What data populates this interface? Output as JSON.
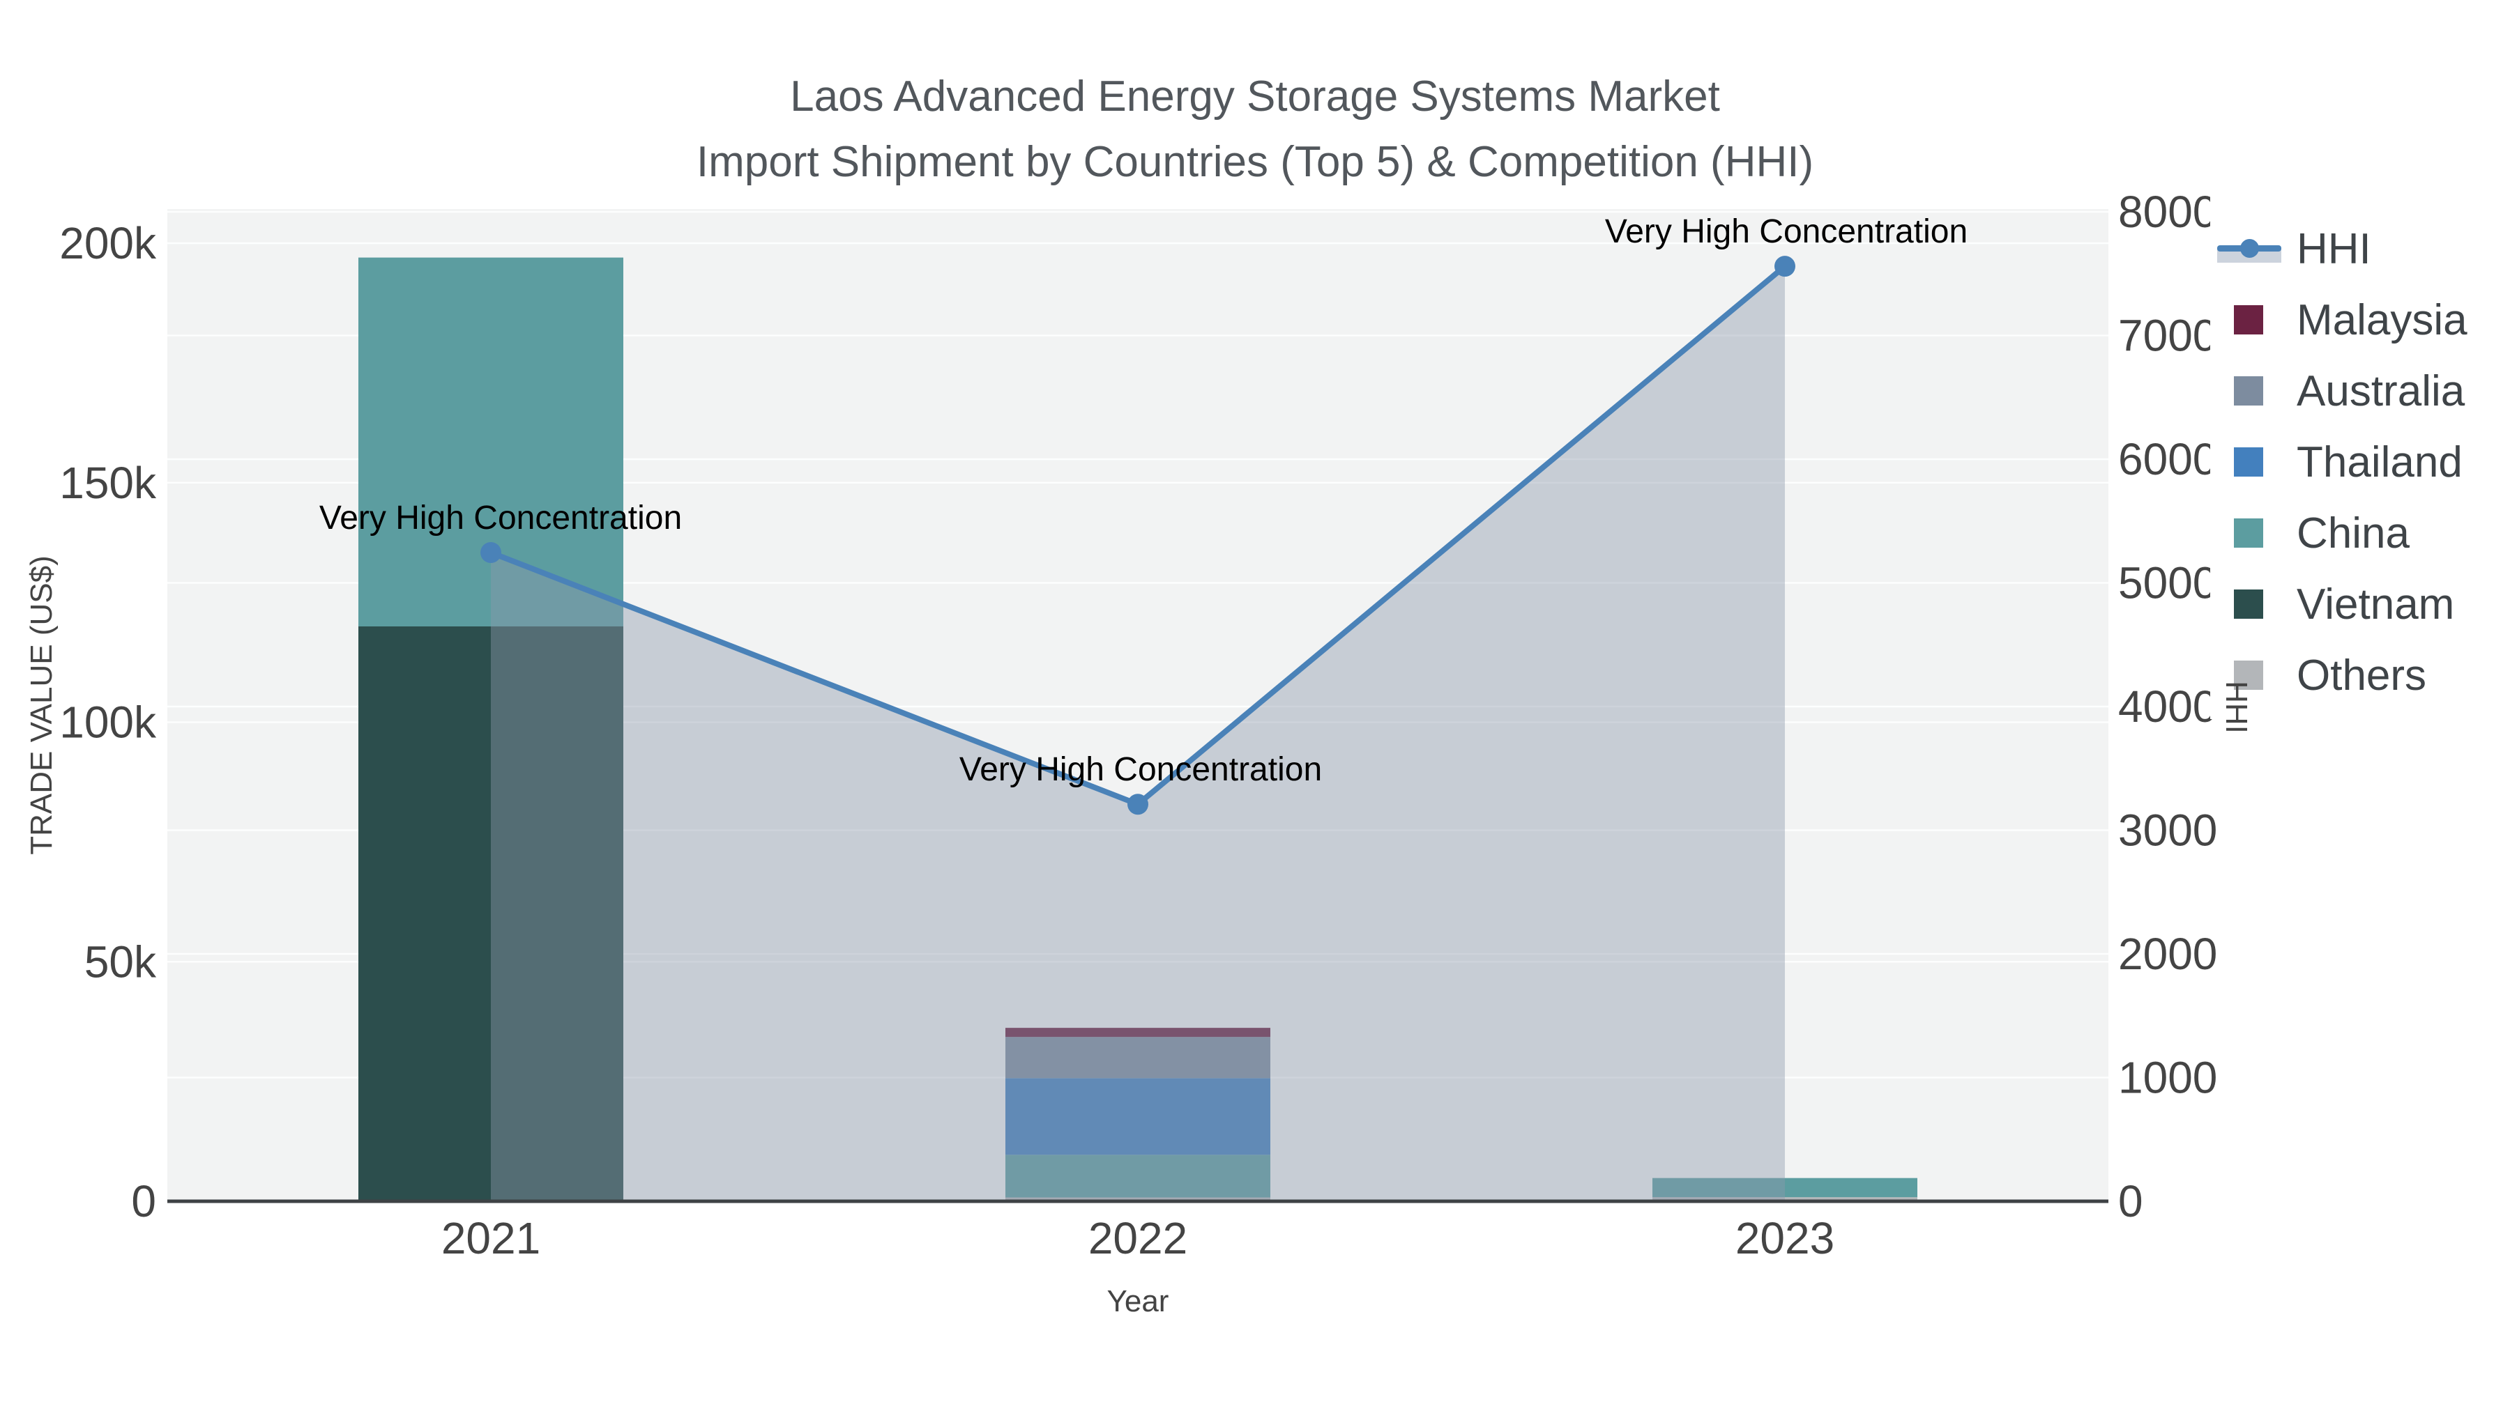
{
  "title_line1": "Laos Advanced Energy Storage Systems Market",
  "title_line2": "Import Shipment by Countries (Top 5) & Competition (HHI)",
  "chart_data": {
    "type": "combo: stacked bar (trade value) + line (HHI) on secondary axis",
    "categories": [
      "2021",
      "2022",
      "2023"
    ],
    "series": [
      {
        "name": "Malaysia",
        "type": "bar",
        "color": "#6b2242",
        "values": [
          0,
          1900,
          0
        ]
      },
      {
        "name": "Australia",
        "type": "bar",
        "color": "#7d8c9f",
        "values": [
          0,
          8600,
          0
        ]
      },
      {
        "name": "Thailand",
        "type": "bar",
        "color": "#4380be",
        "values": [
          0,
          16000,
          0
        ]
      },
      {
        "name": "China",
        "type": "bar",
        "color": "#5c9da0",
        "values": [
          77000,
          8900,
          4000
        ]
      },
      {
        "name": "Vietnam",
        "type": "bar",
        "color": "#2c4e4d",
        "values": [
          120000,
          0,
          0
        ]
      },
      {
        "name": "Others",
        "type": "bar",
        "color": "#b3b6b9",
        "values": [
          0,
          800,
          850
        ]
      }
    ],
    "stack_order_bottom_to_top": [
      "Others",
      "Vietnam",
      "China",
      "Thailand",
      "Australia",
      "Malaysia"
    ],
    "line_series": {
      "name": "HHI",
      "color": "#4a82b8",
      "area_fill_color": "rgba(140,152,172,0.42)",
      "values": [
        5245,
        3210,
        7560
      ]
    },
    "annotations": [
      {
        "text": "Very High Concentration",
        "category": "2021",
        "dx": 14
      },
      {
        "text": "Very High Concentration",
        "category": "2022",
        "dx": 4
      },
      {
        "text": "Very High Concentration",
        "category": "2023",
        "dx": 2
      }
    ],
    "y_left": {
      "title": "TRADE VALUE (US$)",
      "tick_labels": [
        "0",
        "50k",
        "100k",
        "150k",
        "200k"
      ],
      "tick_values": [
        0,
        50000,
        100000,
        150000,
        200000
      ],
      "range": [
        0,
        207000
      ],
      "grid": true
    },
    "y_right": {
      "title": "HHI",
      "tick_labels": [
        "0",
        "1000",
        "2000",
        "3000",
        "4000",
        "5000",
        "6000",
        "7000",
        "8000"
      ],
      "tick_values": [
        0,
        1000,
        2000,
        3000,
        4000,
        5000,
        6000,
        7000,
        8000
      ],
      "range": [
        0,
        8280
      ],
      "grid": true
    },
    "x_axis": {
      "title": "Year"
    },
    "legend": {
      "position": "top-right",
      "items": [
        {
          "label": "HHI",
          "marker": "line-dot"
        },
        {
          "label": "Malaysia",
          "marker": "square",
          "color": "#6b2242"
        },
        {
          "label": "Australia",
          "marker": "square",
          "color": "#7d8c9f"
        },
        {
          "label": "Thailand",
          "marker": "square",
          "color": "#4380be"
        },
        {
          "label": "China",
          "marker": "square",
          "color": "#5c9da0"
        },
        {
          "label": "Vietnam",
          "marker": "square",
          "color": "#2c4e4d"
        },
        {
          "label": "Others",
          "marker": "square",
          "color": "#b3b6b9"
        }
      ]
    },
    "colors": {
      "plot_background": "#f2f3f3",
      "gridline": "#ffffff",
      "axis_line": "#3e4245",
      "tick_text": "#444444",
      "annotation_text": "#000000",
      "title_text": "#52575c"
    }
  }
}
